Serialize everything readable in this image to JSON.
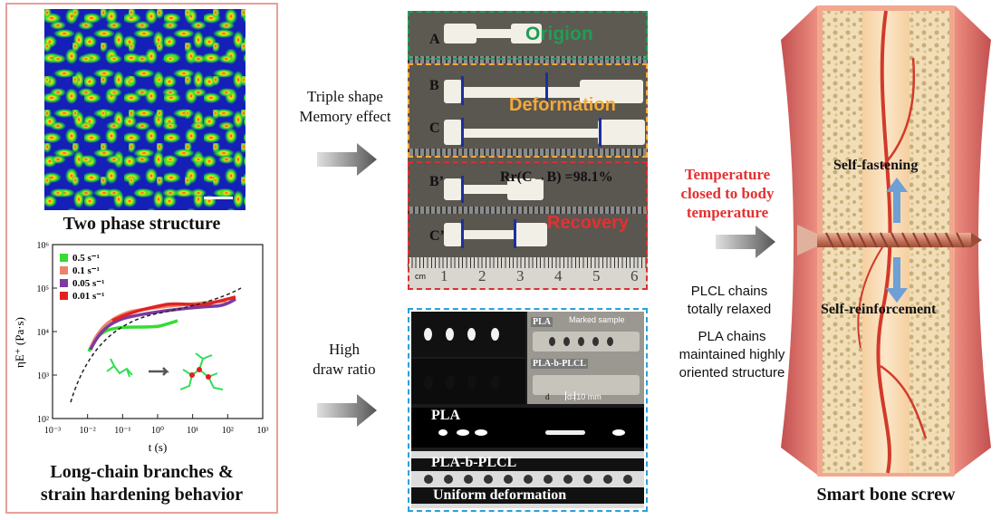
{
  "left": {
    "panel_a_title": "Two phase structure",
    "panel_b_title_line1": "Long-chain branches &",
    "panel_b_title_line2": "strain hardening behavior",
    "plot": {
      "ylabel": "ηE⁺ (Pa·s)",
      "xlabel": "t (s)",
      "y_ticks": [
        "10⁶",
        "10⁵",
        "10⁴",
        "10³",
        "10²"
      ],
      "x_ticks": [
        "10⁻³",
        "10⁻²",
        "10⁻¹",
        "10⁰",
        "10¹",
        "10²",
        "10³"
      ],
      "legend": [
        {
          "label": "0.5 s⁻¹",
          "color": "#33dd33"
        },
        {
          "label": "0.1 s⁻¹",
          "color": "#e9866a"
        },
        {
          "label": "0.05 s⁻¹",
          "color": "#7d3aa0"
        },
        {
          "label": "0.01 s⁻¹",
          "color": "#e22222"
        }
      ]
    }
  },
  "arrows": {
    "top_line1": "Triple shape",
    "top_line2": "Memory effect",
    "bottom_line1": "High",
    "bottom_line2": "draw ratio"
  },
  "center": {
    "label_a": "A",
    "origion": "Origion",
    "label_b": "B",
    "label_c": "C",
    "deformation": "Deformation",
    "label_b2": "B’",
    "label_c2": "C’",
    "rr": "Rr(C→B) =98.1%",
    "recovery": "Recovery",
    "ruler_cm": "cm",
    "ruler_numbers": [
      "1",
      "2",
      "3",
      "4",
      "5",
      "6"
    ],
    "bottom": {
      "pla_tag": "PLA",
      "marked_sample": "Marked sample",
      "plabplcl_tag": "PLA-b-PLCL",
      "d": "d",
      "d_value": "d=10 mm",
      "pla_strip": "PLA",
      "plabplcl_strip": "PLA-b-PLCL",
      "uniform": "Uniform deformation"
    }
  },
  "right_text": {
    "temp_line1": "Temperature",
    "temp_line2": "closed to body",
    "temp_line3": "temperature",
    "plcl_line1": "PLCL chains",
    "plcl_line2": "totally relaxed",
    "pla_line1": "PLA chains",
    "pla_line2": "maintained highly",
    "pla_line3": "oriented structure"
  },
  "screw": {
    "self_fastening": "Self-fastening",
    "self_reinforcement": "Self-reinforcement",
    "title": "Smart bone screw"
  },
  "colors": {
    "green": "#1f9d55",
    "orange": "#f3a93a",
    "red": "#d93030",
    "blue": "#2d9fd8",
    "temp_red": "#e53030"
  }
}
